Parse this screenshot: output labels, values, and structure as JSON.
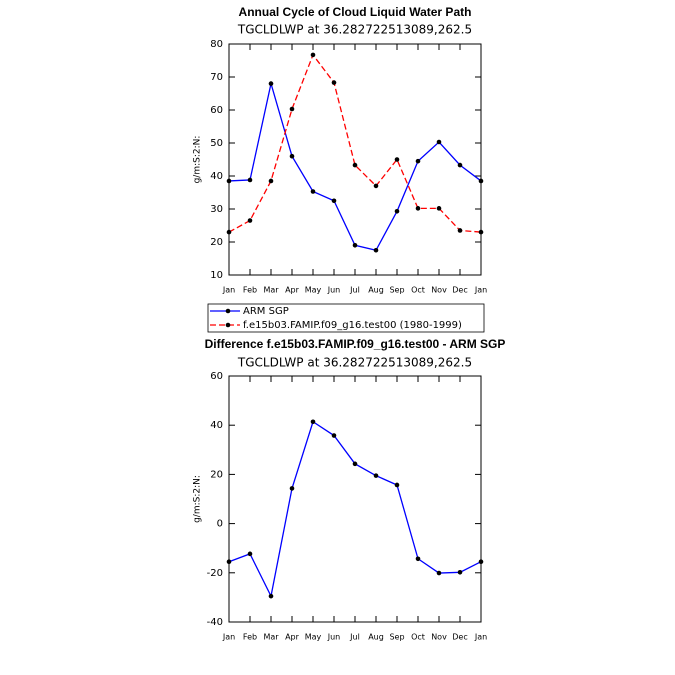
{
  "chart_data": [
    {
      "type": "line",
      "title": "Annual Cycle of Cloud Liquid Water Path",
      "subtitle": "TGCLDLWP at 36.282722513089,262.5",
      "ylabel": "g/m:S:2:N:",
      "categories": [
        "Jan",
        "Feb",
        "Mar",
        "Apr",
        "May",
        "Jun",
        "Jul",
        "Aug",
        "Sep",
        "Oct",
        "Nov",
        "Dec",
        "Jan"
      ],
      "series": [
        {
          "name": "ARM SGP",
          "color": "#0000ff",
          "dashed": false,
          "values": [
            38.5,
            38.8,
            68,
            46,
            35.3,
            32.5,
            19,
            17.5,
            29.3,
            44.5,
            50.3,
            43.3,
            38.5
          ]
        },
        {
          "name": "f.e15b03.FAMIP.f09_g16.test00 (1980-1999)",
          "color": "#ff0000",
          "dashed": true,
          "values": [
            23,
            26.5,
            38.5,
            60.3,
            76.7,
            68.3,
            43.3,
            37,
            45,
            30.2,
            30.2,
            23.5,
            23
          ]
        }
      ],
      "ylim": [
        10,
        80
      ],
      "yticks": [
        10,
        20,
        30,
        40,
        50,
        60,
        70,
        80
      ],
      "legend": "below"
    },
    {
      "type": "line",
      "title": "Difference f.e15b03.FAMIP.f09_g16.test00 - ARM SGP",
      "subtitle": "TGCLDLWP at 36.282722513089,262.5",
      "ylabel": "g/m:S:2:N:",
      "categories": [
        "Jan",
        "Feb",
        "Mar",
        "Apr",
        "May",
        "Jun",
        "Jul",
        "Aug",
        "Sep",
        "Oct",
        "Nov",
        "Dec",
        "Jan"
      ],
      "series": [
        {
          "color": "#0000ff",
          "dashed": false,
          "values": [
            -15.5,
            -12.3,
            -29.5,
            14.3,
            41.4,
            35.8,
            24.3,
            19.5,
            15.7,
            -14.3,
            -20.1,
            -19.8,
            -15.5
          ]
        }
      ],
      "ylim": [
        -40,
        60
      ],
      "yticks": [
        -40,
        -20,
        0,
        20,
        40,
        60
      ]
    }
  ]
}
